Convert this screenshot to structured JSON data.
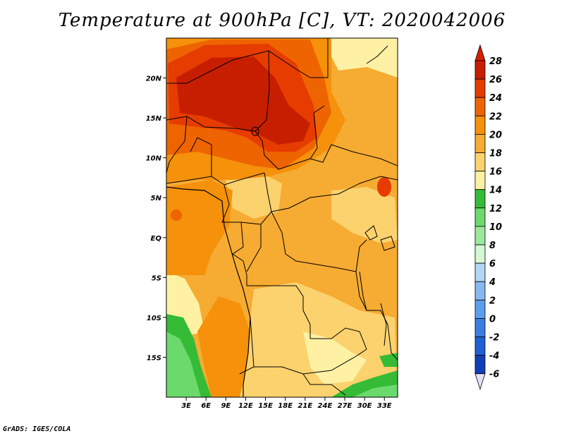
{
  "title": "Temperature at 900hPa [C], VT: 2020042006",
  "footer": "GrADS: IGES/COLA",
  "map": {
    "lon_range": [
      0,
      35
    ],
    "lat_range": [
      -20,
      25
    ],
    "lat_ticks": [
      {
        "lat": 20,
        "label": "20N"
      },
      {
        "lat": 15,
        "label": "15N"
      },
      {
        "lat": 10,
        "label": "10N"
      },
      {
        "lat": 5,
        "label": "5N"
      },
      {
        "lat": 0,
        "label": "EQ"
      },
      {
        "lat": -5,
        "label": "5S"
      },
      {
        "lat": -10,
        "label": "10S"
      },
      {
        "lat": -15,
        "label": "15S"
      }
    ],
    "lon_ticks": [
      {
        "lon": 3,
        "label": "3E"
      },
      {
        "lon": 6,
        "label": "6E"
      },
      {
        "lon": 9,
        "label": "9E"
      },
      {
        "lon": 12,
        "label": "12E"
      },
      {
        "lon": 15,
        "label": "15E"
      },
      {
        "lon": 18,
        "label": "18E"
      },
      {
        "lon": 21,
        "label": "21E"
      },
      {
        "lon": 24,
        "label": "24E"
      },
      {
        "lon": 27,
        "label": "27E"
      },
      {
        "lon": 30,
        "label": "30E"
      },
      {
        "lon": 33,
        "label": "33E"
      }
    ]
  },
  "colorbar": {
    "labels": [
      "28",
      "26",
      "24",
      "22",
      "20",
      "18",
      "16",
      "14",
      "12",
      "10",
      "8",
      "6",
      "4",
      "2",
      "0",
      "-2",
      "-4",
      "-6"
    ],
    "colors": [
      "#c81e00",
      "#e63c00",
      "#ee6400",
      "#f5910a",
      "#f6ab32",
      "#fbd26e",
      "#fff1a3",
      "#35bb35",
      "#6bd96b",
      "#9ce89c",
      "#d4f7d4",
      "#b3d6f5",
      "#87b9f0",
      "#5c9eeb",
      "#3a7fe0",
      "#1f60d4",
      "#123fb8",
      "#0a1e7a"
    ],
    "top_color": "#d91e00",
    "bottom_color": "#e2e2f6"
  }
}
